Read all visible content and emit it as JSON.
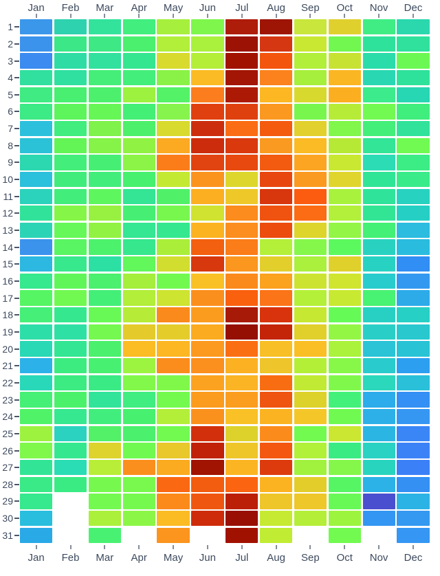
{
  "chart_data": {
    "type": "heatmap",
    "title": "",
    "xlabel": "",
    "ylabel": "",
    "legend": "none",
    "months": [
      "Jan",
      "Feb",
      "Mar",
      "Apr",
      "May",
      "Jun",
      "Jul",
      "Aug",
      "Sep",
      "Oct",
      "Nov",
      "Dec"
    ],
    "days": [
      "1",
      "2",
      "3",
      "4",
      "5",
      "6",
      "7",
      "8",
      "9",
      "10",
      "11",
      "12",
      "13",
      "14",
      "15",
      "16",
      "17",
      "18",
      "19",
      "20",
      "21",
      "22",
      "23",
      "24",
      "25",
      "26",
      "27",
      "28",
      "29",
      "30",
      "31"
    ],
    "x_axis_shown": "top and bottom with tick marks",
    "y_axis_shown": "left with dash ticks",
    "missing_cells": [
      "Feb 29",
      "Feb 30",
      "Feb 31",
      "Apr 31",
      "Jun 31",
      "Sep 31",
      "Nov 31"
    ],
    "cell_colors_by_row": [
      [
        "#3b97ea",
        "#2ed2ae",
        "#33e39c",
        "#41ee7e",
        "#a6ef3d",
        "#7ef64c",
        "#ae1c0a",
        "#9e1506",
        "#c8e63b",
        "#e0d02e",
        "#40ed85",
        "#2bd8ae"
      ],
      [
        "#3b93ec",
        "#3ce787",
        "#3ee884",
        "#4bf06e",
        "#b2ef3a",
        "#a9f13c",
        "#9c1204",
        "#d43711",
        "#c8e832",
        "#72f751",
        "#2fe29b",
        "#2fe19c"
      ],
      [
        "#3b8bf0",
        "#2fdda4",
        "#31e19d",
        "#35e691",
        "#d8da2e",
        "#b4ee39",
        "#a21200",
        "#f4550e",
        "#b2ef3a",
        "#c8e233",
        "#2bdcab",
        "#6cf854"
      ],
      [
        "#31e09e",
        "#30e0a0",
        "#44ee78",
        "#43ee7a",
        "#8af246",
        "#fbbb24",
        "#a31504",
        "#fb821d",
        "#a6ef3c",
        "#fbb623",
        "#29d8b2",
        "#2fe29b"
      ],
      [
        "#3feb82",
        "#48ef70",
        "#4cf06c",
        "#9cf23f",
        "#54f267",
        "#fb7d1e",
        "#ac1a06",
        "#fcb723",
        "#d8d92e",
        "#fcae21",
        "#3ceb8b",
        "#27d6b2"
      ],
      [
        "#3cea86",
        "#5ef45c",
        "#66f656",
        "#44ef76",
        "#86f44c",
        "#e0400f",
        "#df410e",
        "#fb9820",
        "#78f64e",
        "#b6ec38",
        "#72fa52",
        "#40ee7e"
      ],
      [
        "#2cc0dc",
        "#40ed7e",
        "#7ff24b",
        "#4df06a",
        "#d8da2e",
        "#cc2e0d",
        "#fb6d14",
        "#f45b0e",
        "#e1d02e",
        "#80f74a",
        "#44ef79",
        "#31e39a"
      ],
      [
        "#2bc2d8",
        "#63f455",
        "#85f348",
        "#90f243",
        "#fcaa22",
        "#cc2c0c",
        "#da390e",
        "#fb9a20",
        "#fbbb24",
        "#b6e936",
        "#33e596",
        "#70fa52"
      ],
      [
        "#2bd8b0",
        "#43ee7a",
        "#46ef74",
        "#8cf446",
        "#fb7d1a",
        "#e14410",
        "#e8490f",
        "#f25b10",
        "#fca522",
        "#c9e831",
        "#2bdcb4",
        "#3cec85"
      ],
      [
        "#2bc0dc",
        "#41ec7c",
        "#43ed7b",
        "#47f06f",
        "#c4e933",
        "#fb941f",
        "#ddd72d",
        "#e8470f",
        "#fb9a20",
        "#e0d52d",
        "#31e596",
        "#3aeb8a"
      ],
      [
        "#2bd2bc",
        "#42ed7b",
        "#5ef65e",
        "#33e594",
        "#50f168",
        "#fcaf21",
        "#eec829",
        "#d8360d",
        "#fb5c10",
        "#a8f23d",
        "#2fe49a",
        "#28d2c0"
      ],
      [
        "#31e29a",
        "#85f547",
        "#98f140",
        "#46ef74",
        "#78f74e",
        "#cfe330",
        "#fb8c1d",
        "#f0530f",
        "#fb6c14",
        "#b2f03b",
        "#32e595",
        "#26cfc4"
      ],
      [
        "#2cd4b6",
        "#66f858",
        "#91f243",
        "#35e692",
        "#35e88f",
        "#fcb322",
        "#fb8e1e",
        "#ec4c0e",
        "#ddd42c",
        "#93f545",
        "#44f075",
        "#2bbce0"
      ],
      [
        "#3b93ec",
        "#59f562",
        "#4cf16c",
        "#36e78e",
        "#aaee3a",
        "#f26010",
        "#fb7d19",
        "#b4ef3a",
        "#85f74a",
        "#5cf95e",
        "#29d2c0",
        "#2abcdf"
      ],
      [
        "#2cb8e0",
        "#38e88c",
        "#2ce0a4",
        "#62f75a",
        "#d2de2f",
        "#d8380d",
        "#fb961f",
        "#e2cf2c",
        "#aaf03c",
        "#e0d02c",
        "#28d2c2",
        "#318ef4"
      ],
      [
        "#36e88e",
        "#60f65a",
        "#4af06e",
        "#a5ee3c",
        "#72f950",
        "#f9c125",
        "#fb8a1c",
        "#fba21f",
        "#cce431",
        "#cfe52f",
        "#29cccc",
        "#3399f0"
      ],
      [
        "#55f563",
        "#72f951",
        "#44ef78",
        "#b2ee3a",
        "#cde431",
        "#fb8f1e",
        "#f9610f",
        "#fb7418",
        "#b4f039",
        "#c8e931",
        "#48f272",
        "#2dabe9"
      ],
      [
        "#45ef78",
        "#35e890",
        "#68f956",
        "#b6ec38",
        "#fb8a1c",
        "#fb9c1f",
        "#a81a08",
        "#d8330c",
        "#c6e832",
        "#66fa57",
        "#28d0c4",
        "#27d0c4"
      ],
      [
        "#2edea8",
        "#2fe0a4",
        "#75f84f",
        "#e4cb2b",
        "#e4cc2b",
        "#fbab20",
        "#960f03",
        "#c42408",
        "#e1cf2b",
        "#94f644",
        "#29cfc6",
        "#28c8ce"
      ],
      [
        "#29d8b4",
        "#33e693",
        "#4bf06c",
        "#fbbc24",
        "#fcb722",
        "#fb9a1e",
        "#fb6f13",
        "#f8c026",
        "#f9bf24",
        "#aaf23b",
        "#2ac4d6",
        "#29c3d6"
      ],
      [
        "#2cb2e8",
        "#3cec80",
        "#48f072",
        "#9cf440",
        "#fb8d1c",
        "#fb901e",
        "#fbb122",
        "#eec52a",
        "#b4ef38",
        "#87f748",
        "#29cbcc",
        "#2d9ff0"
      ],
      [
        "#29d8b8",
        "#3ceb82",
        "#3aea85",
        "#82f84a",
        "#80f84a",
        "#fba321",
        "#fbb424",
        "#f96d12",
        "#c0ea34",
        "#80f84b",
        "#2bd8bc",
        "#2ac0da"
      ],
      [
        "#46ef75",
        "#4cf16b",
        "#32e49a",
        "#40ed80",
        "#74fa4f",
        "#fb9c1f",
        "#fb9e1f",
        "#ef5510",
        "#ddd22c",
        "#43f17a",
        "#2cacea",
        "#3490f4"
      ],
      [
        "#50f368",
        "#36e88f",
        "#41ee7d",
        "#48f06f",
        "#b3ef39",
        "#fb911d",
        "#f9c125",
        "#fbb321",
        "#f5c628",
        "#70fa51",
        "#2db0e7",
        "#3697f3"
      ],
      [
        "#9df23f",
        "#2bd2c0",
        "#52f167",
        "#4bf06d",
        "#72fa50",
        "#d2300c",
        "#ddd22c",
        "#fb8c1c",
        "#72fa50",
        "#cbe731",
        "#2bb5e3",
        "#3a86f6"
      ],
      [
        "#7ff74b",
        "#35e88f",
        "#ddd32c",
        "#70fa51",
        "#e8c82a",
        "#c02108",
        "#eec62a",
        "#f4570f",
        "#b1f13a",
        "#3aeb84",
        "#29d2c2",
        "#3c82f7"
      ],
      [
        "#32e596",
        "#2addb4",
        "#b8ee37",
        "#fb8f1d",
        "#fbab20",
        "#a11402",
        "#fcb522",
        "#dd3b0d",
        "#a0f23e",
        "#84f74a",
        "#29d4be",
        "#3c80f7"
      ],
      [
        "#39ea86",
        "#3aeb84",
        "#77f84e",
        "#79f94d",
        "#fb6812",
        "#f25d10",
        "#fb6411",
        "#fcb321",
        "#e3cd2b",
        "#55f564",
        "#2cb2e6",
        "#3590f4"
      ],
      [
        "#36e88e",
        null,
        "#74f950",
        "#76f94f",
        "#fb8a1b",
        "#ef5710",
        "#bc1f07",
        "#eec62a",
        "#eec72a",
        "#69f956",
        "#4a4fd0",
        "#2cb3e5"
      ],
      [
        "#29bede",
        null,
        "#abf03b",
        "#8cf646",
        "#fbbb23",
        "#ce2b0a",
        "#990f03",
        "#c6ea32",
        "#b5ee38",
        "#9df43f",
        "#3396f2",
        "#3399f1"
      ],
      [
        "#2aa9e7",
        null,
        "#49f173",
        null,
        "#fb951e",
        null,
        "#a11100",
        "#c0ec33",
        null,
        "#72fa50",
        null,
        "#3597f3"
      ]
    ]
  },
  "style": {
    "background_color": "#ffffff",
    "axis_label_color": "#3d4a5e",
    "top_bottom_tick_color": "#848d9b",
    "left_dash_tick_color": "#4a5568",
    "grid_gap_color": "#ffffff"
  }
}
